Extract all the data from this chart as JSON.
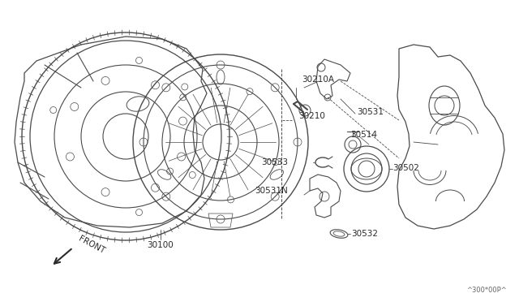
{
  "background_color": "#ffffff",
  "line_color": "#4a4a4a",
  "text_color": "#2a2a2a",
  "fig_width": 6.4,
  "fig_height": 3.72,
  "dpi": 100,
  "watermark": "^300*00P^",
  "front_label": "FRONT",
  "label_30100": "30100",
  "label_30210": "30210",
  "label_30210A": "30210A",
  "label_30531": "30531",
  "label_30514": "30514",
  "label_30502": "30502",
  "label_30533": "30533",
  "label_30531N": "30531N",
  "label_30532": "30532"
}
